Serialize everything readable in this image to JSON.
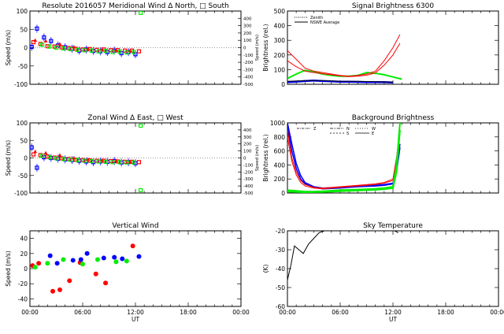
{
  "colors": {
    "red": "#ff0000",
    "green": "#00ee00",
    "blue": "#0000ff",
    "axis": "#000000"
  },
  "chart_data": [
    {
      "id": "meridional",
      "type": "scatter",
      "title": "Resolute  2016057    Meridional Wind   Δ North, □ South",
      "xlabel": "",
      "ylabel": "Speed (m/s)",
      "y2label": "Speed (m/s)",
      "xlim": [
        0,
        24
      ],
      "ylim": [
        -100,
        100
      ],
      "xticks": [
        0,
        6,
        12,
        18,
        24
      ],
      "yticks": [
        -100,
        -50,
        0,
        50,
        100
      ],
      "ytick_labels": [
        "-100",
        "-50",
        "0",
        "50",
        "100"
      ],
      "y2ticks": [
        -500,
        -400,
        -300,
        -200,
        -100,
        0,
        100,
        200,
        300,
        400
      ],
      "y2tick_labels": [
        "-500",
        "-400",
        "-300",
        "-200",
        "-100",
        "0",
        "100",
        "200",
        "300",
        "400"
      ],
      "series": [
        {
          "name": "north",
          "color": "#0000ff",
          "marker": "square",
          "errorbars": true,
          "x": [
            0.2,
            0.8,
            1.6,
            2.4,
            3.2,
            4.0,
            4.8,
            5.6,
            6.4,
            7.2,
            8.0,
            8.8,
            9.6,
            10.4,
            11.2,
            12.0
          ],
          "y": [
            2,
            52,
            28,
            18,
            6,
            1,
            -3,
            -8,
            -5,
            -9,
            -10,
            -12,
            -8,
            -15,
            -12,
            -18
          ]
        },
        {
          "name": "south",
          "color": "#ff0000",
          "marker": "square",
          "x": [
            0.4,
            1.2,
            2.0,
            2.8,
            3.6,
            4.4,
            5.2,
            6.0,
            6.8,
            7.6,
            8.4,
            9.2,
            10.0,
            10.8,
            11.6,
            12.4
          ],
          "y": [
            15,
            10,
            4,
            3,
            1,
            -1,
            -3,
            -5,
            -4,
            -6,
            -5,
            -7,
            -7,
            -8,
            -8,
            -10
          ]
        },
        {
          "name": "south-extra",
          "color": "#00ee00",
          "marker": "square",
          "x": [
            1.4,
            2.2,
            3.0,
            3.8,
            4.6,
            5.4,
            6.2,
            7.0,
            7.8,
            8.6,
            9.4,
            10.2,
            11.0,
            11.8,
            12.6
          ],
          "y": [
            8,
            3,
            0,
            -2,
            -4,
            -6,
            -7,
            -8,
            -10,
            -9,
            -12,
            -11,
            -13,
            -12,
            95
          ]
        },
        {
          "name": "north-extra",
          "color": "#ff0000",
          "marker": "triangle",
          "x": [
            0.6,
            1.8,
            3.4,
            5.0,
            6.6,
            8.2,
            9.8,
            11.4
          ],
          "y": [
            20,
            18,
            10,
            2,
            -2,
            -4,
            -6,
            -8
          ]
        }
      ]
    },
    {
      "id": "zonal",
      "type": "scatter",
      "title": "Zonal Wind       Δ East, □ West",
      "xlabel": "",
      "ylabel": "Speed (m/s)",
      "y2label": "Speed (m/s)",
      "xlim": [
        0,
        24
      ],
      "ylim": [
        -100,
        100
      ],
      "xticks": [
        0,
        6,
        12,
        18,
        24
      ],
      "yticks": [
        -100,
        -50,
        0,
        50,
        100
      ],
      "ytick_labels": [
        "-100",
        "-50",
        "0",
        "50",
        "100"
      ],
      "y2ticks": [
        -500,
        -400,
        -300,
        -200,
        -100,
        0,
        100,
        200,
        300,
        400
      ],
      "y2tick_labels": [
        "-500",
        "-400",
        "-300",
        "-200",
        "-100",
        "0",
        "100",
        "200",
        "300",
        "400"
      ],
      "series": [
        {
          "name": "east",
          "color": "#0000ff",
          "marker": "square",
          "errorbars": true,
          "x": [
            0.2,
            0.8,
            1.6,
            2.4,
            3.2,
            4.0,
            4.8,
            5.6,
            6.4,
            7.2,
            8.0,
            8.8,
            9.6,
            10.4,
            11.2,
            12.0
          ],
          "y": [
            30,
            -28,
            2,
            0,
            -2,
            -4,
            -6,
            -8,
            -10,
            -12,
            -10,
            -11,
            -9,
            -13,
            -12,
            -15
          ]
        },
        {
          "name": "west",
          "color": "#ff0000",
          "marker": "square",
          "x": [
            0.4,
            1.2,
            2.0,
            2.8,
            3.6,
            4.4,
            5.2,
            6.0,
            6.8,
            7.6,
            8.4,
            9.2,
            10.0,
            10.8,
            11.6,
            12.4
          ],
          "y": [
            10,
            8,
            4,
            1,
            -1,
            -3,
            -5,
            -6,
            -7,
            -8,
            -8,
            -9,
            -10,
            -11,
            -11,
            -12
          ]
        },
        {
          "name": "west-extra",
          "color": "#00ee00",
          "marker": "square",
          "x": [
            1.4,
            2.2,
            3.0,
            3.8,
            4.6,
            5.4,
            6.2,
            7.0,
            7.8,
            8.6,
            9.4,
            10.2,
            11.0,
            11.8,
            12.6,
            12.6
          ],
          "y": [
            6,
            2,
            -1,
            -3,
            -5,
            -6,
            -8,
            -9,
            -10,
            -11,
            -12,
            -12,
            -13,
            -13,
            92,
            -92
          ]
        },
        {
          "name": "east-extra",
          "color": "#ff0000",
          "marker": "triangle",
          "x": [
            0.6,
            1.8,
            3.4,
            5.0,
            6.6,
            8.2,
            9.8,
            11.4
          ],
          "y": [
            18,
            14,
            8,
            0,
            -4,
            -6,
            -8,
            -10
          ]
        }
      ]
    },
    {
      "id": "vertical",
      "type": "scatter",
      "title": "Vertical Wind",
      "xlabel": "UT",
      "ylabel": "Speed (m/s)",
      "xlim": [
        0,
        24
      ],
      "ylim": [
        -50,
        50
      ],
      "xticks": [
        0,
        6,
        12,
        18,
        24
      ],
      "xtick_labels": [
        "00:00",
        "06:00",
        "12:00",
        "18:00",
        "00:00"
      ],
      "yticks": [
        -40,
        -20,
        0,
        20,
        40
      ],
      "ytick_labels": [
        "-40",
        "-20",
        "0",
        "20",
        "40"
      ],
      "series": [
        {
          "name": "red",
          "color": "#ff0000",
          "marker": "circle",
          "x": [
            0.3,
            1.0,
            2.6,
            3.4,
            4.5,
            5.7,
            7.5,
            8.6,
            11.7
          ],
          "y": [
            4,
            7,
            -30,
            -28,
            -16,
            8,
            -7,
            -19,
            30
          ]
        },
        {
          "name": "green",
          "color": "#00ee00",
          "marker": "circle",
          "x": [
            0.6,
            2.0,
            3.8,
            6.0,
            7.7,
            9.8,
            11.0
          ],
          "y": [
            2,
            7,
            12,
            6,
            12,
            9,
            10
          ]
        },
        {
          "name": "blue",
          "color": "#0000ff",
          "marker": "circle",
          "x": [
            2.3,
            3.1,
            4.9,
            5.8,
            6.5,
            8.4,
            9.6,
            10.5,
            12.4
          ],
          "y": [
            17,
            7,
            11,
            12,
            20,
            14,
            15,
            13,
            16
          ]
        }
      ]
    },
    {
      "id": "signal",
      "type": "line",
      "title": "Signal Brightness        6300",
      "xlabel": "",
      "ylabel": "Brightness (rel.)",
      "xlim": [
        0,
        24
      ],
      "ylim": [
        0,
        500
      ],
      "xticks": [
        0,
        6,
        12,
        18,
        24
      ],
      "yticks": [
        0,
        100,
        200,
        300,
        400,
        500
      ],
      "ytick_labels": [
        "0",
        "100",
        "200",
        "300",
        "400",
        "500"
      ],
      "legend": [
        "Zenith",
        "NSWE Average"
      ],
      "series": [
        {
          "name": "zenith",
          "color": "#0000ff",
          "width": 2.5,
          "x": [
            0,
            1,
            2,
            3,
            4,
            5,
            6,
            7,
            8,
            9,
            10,
            11,
            12
          ],
          "y": [
            15,
            18,
            22,
            25,
            22,
            20,
            18,
            17,
            16,
            15,
            15,
            15,
            12
          ]
        },
        {
          "name": "green",
          "color": "#00ee00",
          "width": 2,
          "x": [
            0,
            1,
            2,
            3,
            4,
            5,
            6,
            7,
            8,
            9,
            10,
            11,
            12,
            13
          ],
          "y": [
            40,
            70,
            95,
            85,
            70,
            60,
            55,
            55,
            60,
            80,
            75,
            65,
            50,
            35
          ]
        },
        {
          "name": "red-1",
          "color": "#ff0000",
          "width": 1,
          "x": [
            0,
            1,
            2,
            3,
            4,
            5,
            6,
            7,
            8,
            9,
            10,
            11,
            12,
            12.8
          ],
          "y": [
            230,
            170,
            110,
            90,
            80,
            70,
            60,
            55,
            60,
            70,
            90,
            160,
            250,
            340
          ]
        },
        {
          "name": "red-2",
          "color": "#ff0000",
          "width": 1,
          "x": [
            0,
            1,
            2,
            3,
            4,
            5,
            6,
            7,
            8,
            9,
            10,
            11,
            12,
            12.8
          ],
          "y": [
            160,
            120,
            90,
            80,
            72,
            65,
            58,
            52,
            56,
            62,
            78,
            130,
            200,
            280
          ]
        },
        {
          "name": "nswe-average",
          "color": "#000000",
          "width": 1,
          "x": [
            0,
            2,
            4,
            6,
            8,
            10,
            12
          ],
          "y": [
            20,
            25,
            25,
            20,
            20,
            18,
            15
          ]
        }
      ]
    },
    {
      "id": "background",
      "type": "line",
      "title": "Background Brightness",
      "xlabel": "",
      "ylabel": "Brightness (rel.)",
      "xlim": [
        0,
        24
      ],
      "ylim": [
        0,
        1000
      ],
      "xticks": [
        0,
        6,
        12,
        18,
        24
      ],
      "yticks": [
        0,
        200,
        400,
        600,
        800,
        1000
      ],
      "ytick_labels": [
        "0",
        "200",
        "400",
        "600",
        "800",
        "1000"
      ],
      "legend": [
        "Z",
        "N",
        "S",
        "W",
        "E"
      ],
      "series": [
        {
          "name": "blue-1",
          "color": "#0000ff",
          "width": 1.5,
          "x": [
            0,
            0.5,
            1,
            1.5,
            2,
            3,
            4,
            6,
            8,
            10,
            11,
            12,
            12.4,
            12.8
          ],
          "y": [
            1000,
            700,
            420,
            250,
            150,
            90,
            70,
            80,
            100,
            110,
            120,
            140,
            350,
            700
          ]
        },
        {
          "name": "blue-2",
          "color": "#0000ff",
          "width": 1.5,
          "x": [
            0,
            0.5,
            1,
            1.5,
            2,
            3,
            4,
            6,
            8,
            10,
            11,
            12,
            12.4,
            12.8
          ],
          "y": [
            950,
            600,
            350,
            200,
            130,
            80,
            60,
            70,
            90,
            100,
            110,
            130,
            300,
            650
          ]
        },
        {
          "name": "red-1",
          "color": "#ff0000",
          "width": 1,
          "x": [
            0,
            0.5,
            1,
            1.5,
            2,
            3,
            4,
            6,
            8,
            10,
            11,
            12,
            12.4,
            12.8
          ],
          "y": [
            900,
            500,
            300,
            180,
            120,
            80,
            70,
            90,
            110,
            130,
            150,
            200,
            500,
            900
          ]
        },
        {
          "name": "red-2",
          "color": "#ff0000",
          "width": 1,
          "x": [
            0,
            0.5,
            1,
            1.5,
            2,
            3,
            4,
            6,
            8,
            10,
            11,
            12,
            12.4,
            12.8
          ],
          "y": [
            800,
            450,
            260,
            150,
            100,
            70,
            60,
            80,
            100,
            120,
            140,
            180,
            450,
            850
          ]
        },
        {
          "name": "green-1",
          "color": "#00ee00",
          "width": 2,
          "x": [
            0,
            1,
            2,
            3,
            4,
            6,
            8,
            10,
            11,
            12,
            12.4,
            12.8
          ],
          "y": [
            40,
            30,
            20,
            20,
            25,
            40,
            50,
            60,
            70,
            90,
            400,
            1000
          ]
        },
        {
          "name": "green-2",
          "color": "#00ee00",
          "width": 2,
          "x": [
            0,
            1,
            2,
            3,
            4,
            6,
            8,
            10,
            11,
            12,
            12.4,
            12.8
          ],
          "y": [
            20,
            15,
            10,
            12,
            15,
            25,
            35,
            45,
            55,
            70,
            300,
            900
          ]
        }
      ]
    },
    {
      "id": "sky",
      "type": "line",
      "title": "Sky Temperature",
      "xlabel": "UT",
      "ylabel": "(K)",
      "xlim": [
        0,
        24
      ],
      "ylim": [
        -60,
        -20
      ],
      "xticks": [
        0,
        6,
        12,
        18,
        24
      ],
      "xtick_labels": [
        "00:00",
        "06:00",
        "12:00",
        "18:00",
        "00:00"
      ],
      "yticks": [
        -60,
        -50,
        -40,
        -30,
        -20
      ],
      "ytick_labels": [
        "-60",
        "-50",
        "-40",
        "-30",
        "-20"
      ],
      "series": [
        {
          "name": "sky",
          "color": "#000000",
          "width": 1,
          "x": [
            0,
            0.4,
            0.8,
            1.3,
            1.8,
            2.4,
            3.0,
            3.6,
            4.2
          ],
          "y": [
            -46,
            -38,
            -28,
            -30,
            -32,
            -27,
            -24,
            -21,
            -20
          ]
        },
        {
          "name": "sky-late",
          "color": "#000000",
          "width": 1,
          "x": [
            12.2,
            12.6
          ],
          "y": [
            -20,
            -21
          ]
        }
      ]
    }
  ]
}
